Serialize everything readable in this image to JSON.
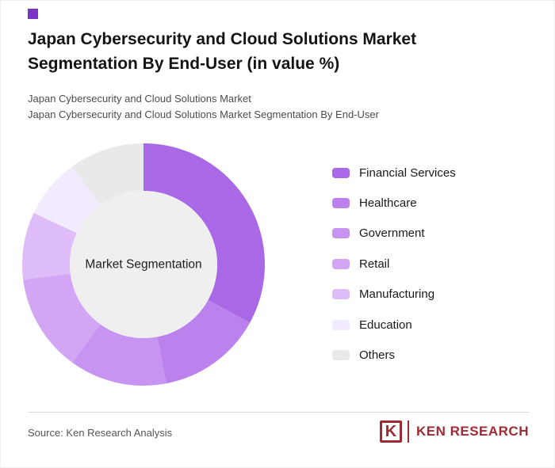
{
  "header": {
    "title": "Japan Cybersecurity and Cloud Solutions Market Segmentation By End-User (in value %)",
    "subtitle1": "Japan Cybersecurity and Cloud Solutions Market",
    "subtitle2": "Japan Cybersecurity and Cloud Solutions Market Segmentation By End-User",
    "accent_color": "#7a35c8"
  },
  "chart_data": {
    "type": "pie",
    "donut": true,
    "title": "Japan Cybersecurity and Cloud Solutions Market Segmentation By End-User (in value %)",
    "center_label": "Market Segmentation",
    "center_fill": "#efeff0",
    "start_angle_deg": 0,
    "direction": "clockwise",
    "legend_position": "right",
    "categories": [
      "Financial Services",
      "Healthcare",
      "Government",
      "Retail",
      "Manufacturing",
      "Education",
      "Others"
    ],
    "values": [
      33,
      14,
      13,
      13,
      9,
      8,
      10
    ],
    "colors": [
      "#a968e6",
      "#bb82ee",
      "#c795f1",
      "#d2a6f4",
      "#debcf8",
      "#f2eafd",
      "#e9e9ea"
    ]
  },
  "footer": {
    "source": "Source: Ken Research Analysis",
    "logo_mark": "K",
    "logo_text": "KEN RESEARCH",
    "logo_color": "#9e2b33"
  }
}
